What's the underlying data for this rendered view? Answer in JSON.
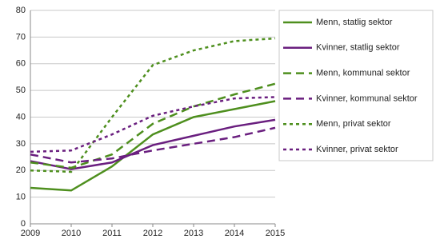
{
  "chart_data": {
    "type": "line",
    "x": [
      2009,
      2010,
      2011,
      2012,
      2013,
      2014,
      2015
    ],
    "xlim": [
      2009,
      2015
    ],
    "xticks": [
      2009,
      2010,
      2011,
      2012,
      2013,
      2014,
      2015
    ],
    "ylim": [
      0,
      80
    ],
    "yticks": [
      0,
      10,
      20,
      30,
      40,
      50,
      60,
      70,
      80
    ],
    "grid": true,
    "legend": "right",
    "series": [
      {
        "name": "Menn, statlig sektor",
        "color": "#4e8f1e",
        "dash": "solid",
        "values": [
          13.5,
          12.5,
          21.5,
          33.5,
          40,
          43,
          46
        ]
      },
      {
        "name": "Kvinner, statlig sektor",
        "color": "#6a1f7f",
        "dash": "solid",
        "values": [
          23.5,
          20.5,
          23,
          29.5,
          33,
          36.5,
          39
        ]
      },
      {
        "name": "Menn, kommunal sektor",
        "color": "#4e8f1e",
        "dash": "long",
        "values": [
          23,
          21,
          26,
          37.5,
          44,
          48.5,
          52.5
        ]
      },
      {
        "name": "Kvinner, kommunal sektor",
        "color": "#6a1f7f",
        "dash": "long",
        "values": [
          26,
          23,
          24.5,
          27.5,
          30,
          32.5,
          36
        ]
      },
      {
        "name": "Menn, privat sektor",
        "color": "#4e8f1e",
        "dash": "short",
        "values": [
          20,
          19.5,
          40,
          59.5,
          65,
          68.5,
          69.5
        ]
      },
      {
        "name": "Kvinner, privat sektor",
        "color": "#6a1f7f",
        "dash": "short",
        "values": [
          27,
          27.5,
          33.5,
          40.5,
          44,
          47,
          47.5
        ]
      }
    ]
  }
}
